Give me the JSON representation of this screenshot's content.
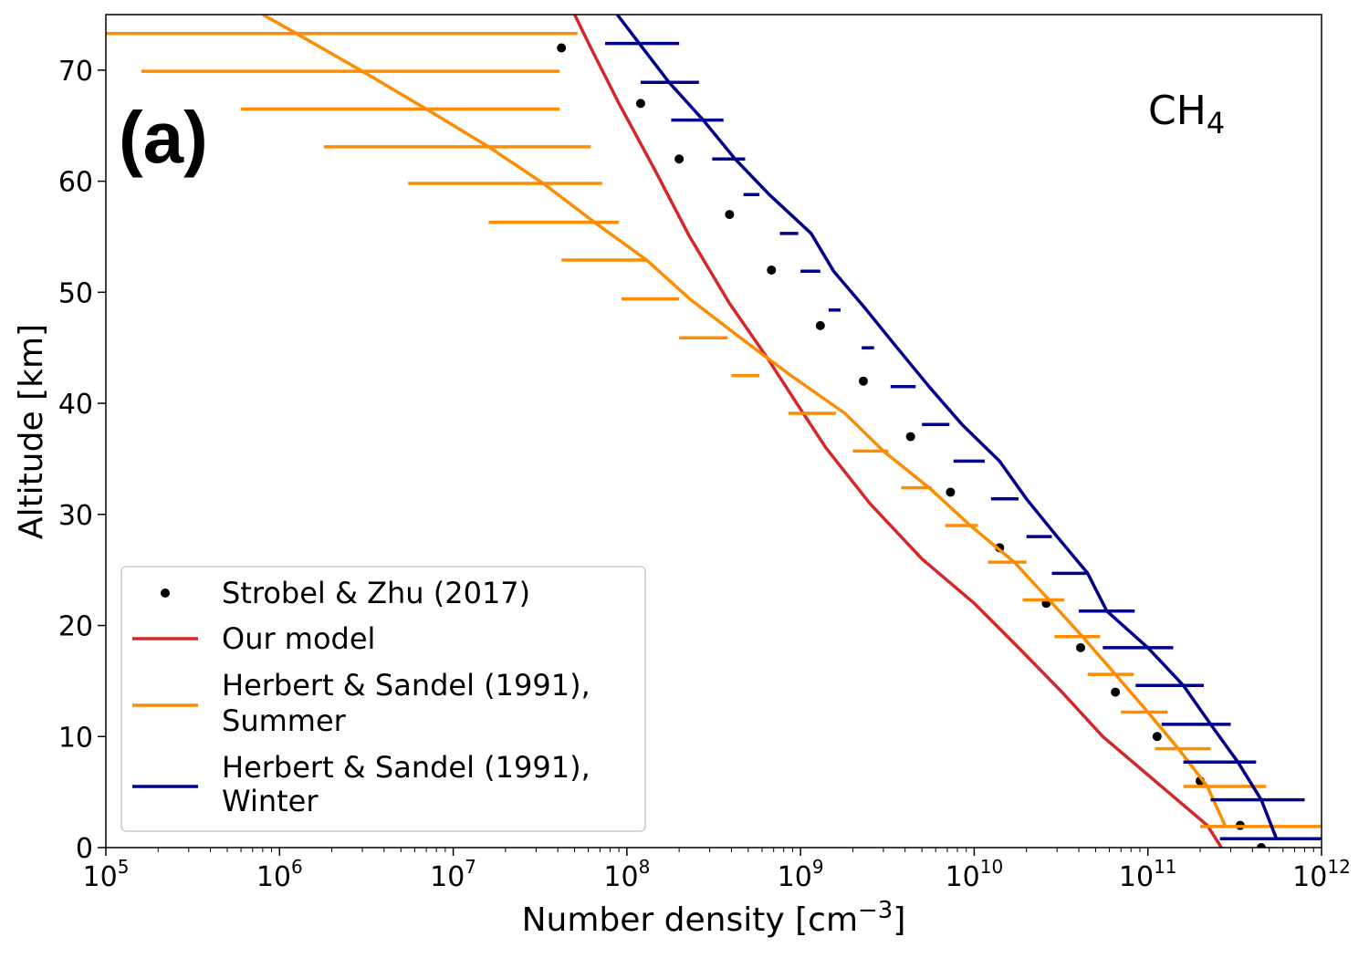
{
  "chart_data": {
    "type": "line",
    "panel_label": "(a)",
    "species": {
      "main": "CH",
      "sub": "4"
    },
    "xlabel": {
      "main": "Number density [cm",
      "sup": "−3",
      "close": "]"
    },
    "ylabel": "Altitude [km]",
    "xscale": "log",
    "xlim": [
      100000,
      1000000000000
    ],
    "ylim": [
      0,
      75
    ],
    "xticks": [
      {
        "value": 100000,
        "base": "10",
        "exp": "5"
      },
      {
        "value": 1000000,
        "base": "10",
        "exp": "6"
      },
      {
        "value": 10000000,
        "base": "10",
        "exp": "7"
      },
      {
        "value": 100000000,
        "base": "10",
        "exp": "8"
      },
      {
        "value": 1000000000,
        "base": "10",
        "exp": "9"
      },
      {
        "value": 10000000000,
        "base": "10",
        "exp": "10"
      },
      {
        "value": 100000000000,
        "base": "10",
        "exp": "11"
      },
      {
        "value": 1000000000000,
        "base": "10",
        "exp": "12"
      }
    ],
    "yticks": [
      0,
      10,
      20,
      30,
      40,
      50,
      60,
      70
    ],
    "grid": false,
    "legend_position": "lower-left",
    "series": [
      {
        "name": "Strobel & Zhu (2017)",
        "style": "points",
        "color": "#000000",
        "points": [
          [
            42000000.0,
            72
          ],
          [
            120000000.0,
            67
          ],
          [
            200000000.0,
            62
          ],
          [
            390000000.0,
            57
          ],
          [
            680000000.0,
            52
          ],
          [
            1300000000.0,
            47
          ],
          [
            2300000000.0,
            42
          ],
          [
            4300000000.0,
            37
          ],
          [
            7300000000.0,
            32
          ],
          [
            14000000000.0,
            27
          ],
          [
            26000000000.0,
            22
          ],
          [
            41000000000.0,
            18
          ],
          [
            65000000000.0,
            14
          ],
          [
            113000000000.0,
            10
          ],
          [
            200000000000.0,
            6
          ],
          [
            340000000000.0,
            2
          ],
          [
            450000000000.0,
            0
          ]
        ]
      },
      {
        "name": "Our model",
        "style": "line",
        "color": "#d62728",
        "points": [
          [
            265000000000.0,
            0
          ],
          [
            220000000000.0,
            2
          ],
          [
            110000000000.0,
            6
          ],
          [
            55000000000.0,
            10
          ],
          [
            32000000000.0,
            14
          ],
          [
            18000000000.0,
            18
          ],
          [
            10000000000.0,
            22
          ],
          [
            5000000000.0,
            26
          ],
          [
            2500000000.0,
            31
          ],
          [
            1400000000.0,
            36
          ],
          [
            950000000.0,
            40
          ],
          [
            650000000.0,
            44
          ],
          [
            390000000.0,
            49
          ],
          [
            230000000.0,
            55
          ],
          [
            145000000.0,
            61
          ],
          [
            90000000.0,
            67
          ],
          [
            62000000.0,
            72
          ],
          [
            50000000.0,
            75
          ]
        ]
      },
      {
        "name": "Herbert & Sandel (1991),\n Summer",
        "style": "line-errorbars",
        "color": "#ff8c00",
        "points": [
          [
            280000000000.0,
            1.9
          ],
          [
            220000000000.0,
            5.5
          ],
          [
            150000000000.0,
            8.9
          ],
          [
            100000000000.0,
            12.2
          ],
          [
            65000000000.0,
            15.6
          ],
          [
            42000000000.0,
            19.0
          ],
          [
            27000000000.0,
            22.3
          ],
          [
            17000000000.0,
            25.7
          ],
          [
            9500000000.0,
            29.0
          ],
          [
            5500000000.0,
            32.4
          ],
          [
            3000000000.0,
            35.7
          ],
          [
            1800000000.0,
            39.1
          ],
          [
            880000000.0,
            42.5
          ],
          [
            450000000.0,
            45.9
          ],
          [
            230000000.0,
            49.4
          ],
          [
            130000000.0,
            52.9
          ],
          [
            65000000.0,
            56.3
          ],
          [
            33000000.0,
            59.8
          ],
          [
            16000000.0,
            63.1
          ],
          [
            7000000.0,
            66.5
          ],
          [
            3000000.0,
            69.9
          ],
          [
            1250000.0,
            73.3
          ],
          [
            800000.0,
            75
          ]
        ],
        "errorbars": [
          {
            "y": 1.9,
            "xmin": 200000000000.0,
            "xmax": 1000000000000.0
          },
          {
            "y": 5.5,
            "xmin": 160000000000.0,
            "xmax": 480000000000.0
          },
          {
            "y": 8.9,
            "xmin": 110000000000.0,
            "xmax": 230000000000.0
          },
          {
            "y": 12.2,
            "xmin": 70000000000.0,
            "xmax": 130000000000.0
          },
          {
            "y": 15.6,
            "xmin": 45000000000.0,
            "xmax": 83000000000.0
          },
          {
            "y": 19.0,
            "xmin": 29000000000.0,
            "xmax": 53000000000.0
          },
          {
            "y": 22.3,
            "xmin": 19000000000.0,
            "xmax": 33000000000.0
          },
          {
            "y": 25.7,
            "xmin": 12000000000.0,
            "xmax": 20000000000.0
          },
          {
            "y": 29.0,
            "xmin": 6800000000.0,
            "xmax": 10500000000.0
          },
          {
            "y": 32.4,
            "xmin": 3800000000.0,
            "xmax": 5700000000.0
          },
          {
            "y": 35.7,
            "xmin": 2000000000.0,
            "xmax": 3200000000.0
          },
          {
            "y": 39.1,
            "xmin": 850000000.0,
            "xmax": 1600000000.0
          },
          {
            "y": 42.5,
            "xmin": 400000000.0,
            "xmax": 580000000.0
          },
          {
            "y": 45.9,
            "xmin": 200000000.0,
            "xmax": 380000000.0
          },
          {
            "y": 49.4,
            "xmin": 93000000.0,
            "xmax": 200000000.0
          },
          {
            "y": 52.9,
            "xmin": 42000000.0,
            "xmax": 130000000.0
          },
          {
            "y": 56.3,
            "xmin": 16000000.0,
            "xmax": 90000000.0
          },
          {
            "y": 59.8,
            "xmin": 5500000.0,
            "xmax": 72000000.0
          },
          {
            "y": 63.1,
            "xmin": 1800000.0,
            "xmax": 62000000.0
          },
          {
            "y": 66.5,
            "xmin": 600000.0,
            "xmax": 41000000.0
          },
          {
            "y": 69.9,
            "xmin": 160000.0,
            "xmax": 41000000.0
          },
          {
            "y": 73.3,
            "xmin": 100000.0,
            "xmax": 52000000.0
          }
        ]
      },
      {
        "name": "Herbert & Sandel (1991),\n Winter",
        "style": "line-errorbars",
        "color": "#00008b",
        "points": [
          [
            550000000000.0,
            0.8
          ],
          [
            450000000000.0,
            4.3
          ],
          [
            330000000000.0,
            7.7
          ],
          [
            230000000000.0,
            11.1
          ],
          [
            160000000000.0,
            14.6
          ],
          [
            100000000000.0,
            18.0
          ],
          [
            58000000000.0,
            21.3
          ],
          [
            45000000000.0,
            24.7
          ],
          [
            30000000000.0,
            28.0
          ],
          [
            20000000000.0,
            31.4
          ],
          [
            14000000000.0,
            34.8
          ],
          [
            8500000000.0,
            38.1
          ],
          [
            5500000000.0,
            41.5
          ],
          [
            3600000000.0,
            45.0
          ],
          [
            2400000000.0,
            48.4
          ],
          [
            1550000000.0,
            51.9
          ],
          [
            1150000000.0,
            55.3
          ],
          [
            660000000.0,
            58.8
          ],
          [
            420000000.0,
            62.0
          ],
          [
            275000000.0,
            65.5
          ],
          [
            175000000.0,
            68.9
          ],
          [
            118000000.0,
            72.4
          ],
          [
            88000000.0,
            75
          ]
        ],
        "errorbars": [
          {
            "y": 0.8,
            "xmin": 260000000000.0,
            "xmax": 1000000000000.0
          },
          {
            "y": 4.3,
            "xmin": 230000000000.0,
            "xmax": 800000000000.0
          },
          {
            "y": 7.7,
            "xmin": 160000000000.0,
            "xmax": 420000000000.0
          },
          {
            "y": 11.1,
            "xmin": 120000000000.0,
            "xmax": 300000000000.0
          },
          {
            "y": 14.6,
            "xmin": 85000000000.0,
            "xmax": 210000000000.0
          },
          {
            "y": 18.0,
            "xmin": 55000000000.0,
            "xmax": 140000000000.0
          },
          {
            "y": 21.3,
            "xmin": 40000000000.0,
            "xmax": 84000000000.0
          },
          {
            "y": 24.7,
            "xmin": 28000000000.0,
            "xmax": 45000000000.0
          },
          {
            "y": 28.0,
            "xmin": 20000000000.0,
            "xmax": 28000000000.0
          },
          {
            "y": 31.4,
            "xmin": 12500000000.0,
            "xmax": 18000000000.0
          },
          {
            "y": 34.8,
            "xmin": 7600000000.0,
            "xmax": 11500000000.0
          },
          {
            "y": 38.1,
            "xmin": 5000000000.0,
            "xmax": 7200000000.0
          },
          {
            "y": 41.5,
            "xmin": 3300000000.0,
            "xmax": 4600000000.0
          },
          {
            "y": 45.0,
            "xmin": 2250000000.0,
            "xmax": 2650000000.0
          },
          {
            "y": 48.4,
            "xmin": 1450000000.0,
            "xmax": 1700000000.0
          },
          {
            "y": 51.9,
            "xmin": 1000000000.0,
            "xmax": 1300000000.0
          },
          {
            "y": 55.3,
            "xmin": 760000000.0,
            "xmax": 970000000.0
          },
          {
            "y": 58.8,
            "xmin": 470000000.0,
            "xmax": 580000000.0
          },
          {
            "y": 62.0,
            "xmin": 310000000.0,
            "xmax": 480000000.0
          },
          {
            "y": 65.5,
            "xmin": 180000000.0,
            "xmax": 360000000.0
          },
          {
            "y": 68.9,
            "xmin": 120000000.0,
            "xmax": 260000000.0
          },
          {
            "y": 72.4,
            "xmin": 75000000.0,
            "xmax": 200000000.0
          }
        ]
      }
    ]
  }
}
